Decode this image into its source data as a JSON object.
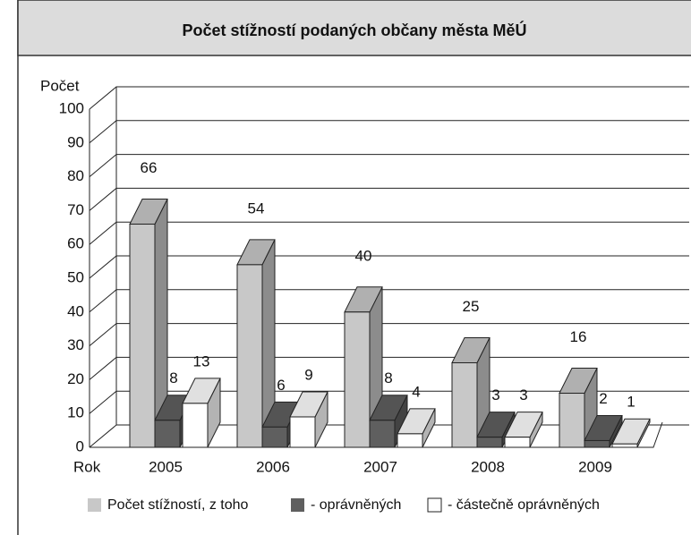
{
  "chart_data": {
    "type": "bar3d",
    "title": "Počet stížností podaných občany města MěÚ",
    "xlabel": "Rok",
    "ylabel": "Počet",
    "categories": [
      "2005",
      "2006",
      "2007",
      "2008",
      "2009"
    ],
    "series": [
      {
        "name": "Počet stížností, z toho",
        "color": "#c8c8c8",
        "values": [
          66,
          54,
          40,
          25,
          16
        ]
      },
      {
        "name": "- oprávněných",
        "color": "#5f5f5f",
        "values": [
          8,
          6,
          8,
          3,
          2
        ]
      },
      {
        "name": "- částečně oprávněných",
        "color": "#ffffff",
        "values": [
          13,
          9,
          4,
          3,
          1
        ]
      }
    ],
    "ylim": [
      0,
      100
    ],
    "yticks": [
      0,
      10,
      20,
      30,
      40,
      50,
      60,
      70,
      80,
      90,
      100
    ],
    "grid": true
  }
}
